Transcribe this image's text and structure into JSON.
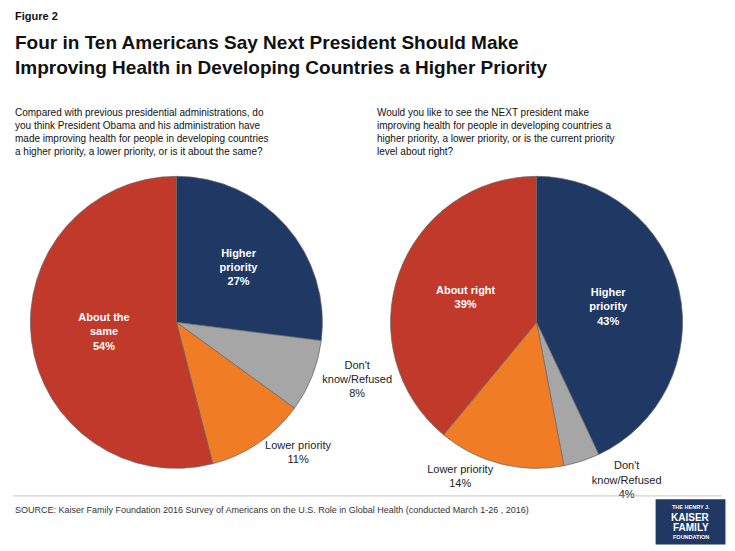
{
  "title": "Four in Ten Americans Say Next President Should Make\nImproving Health in Developing Countries a Higher Priority",
  "annotations": [
    "Figure 2",
    "SOURCE: Kaiser Family Foundation 2016 Survey of Americans on the U.S. Role in Global Health (conducted March 1-26 , 2016)",
    "THE HENRY J.",
    "KAISER",
    "FAMILY",
    "FOUNDATION"
  ],
  "chart_data": [
    {
      "type": "pie",
      "title": "Compared with previous presidential administrations, do\nyou think President Obama and his administration have\nmade improving health for people in developing countries\na higher priority, a lower priority, or is it about the same?",
      "categories": [
        "Higher\npriority",
        "Don't\nknow/Refused",
        "Lower priority",
        "About the\nsame"
      ],
      "values": [
        27,
        8,
        11,
        54
      ],
      "value_labels": [
        "27%",
        "8%",
        "11%",
        "54%"
      ],
      "colors": [
        "#1F3864",
        "#A6A6A6",
        "#F07C26",
        "#C0392B"
      ],
      "data_labels": true
    },
    {
      "type": "pie",
      "title": "Would you like to see the NEXT president make\nimproving health for people in developing countries a\nhigher priority, a lower priority, or is the current priority\nlevel about right?",
      "categories": [
        "Higher\npriority",
        "Don't\nknow/Refused",
        "Lower priority",
        "About right"
      ],
      "values": [
        43,
        4,
        14,
        39
      ],
      "value_labels": [
        "43%",
        "4%",
        "14%",
        "39%"
      ],
      "colors": [
        "#1F3864",
        "#A6A6A6",
        "#F07C26",
        "#C0392B"
      ],
      "data_labels": true
    }
  ]
}
